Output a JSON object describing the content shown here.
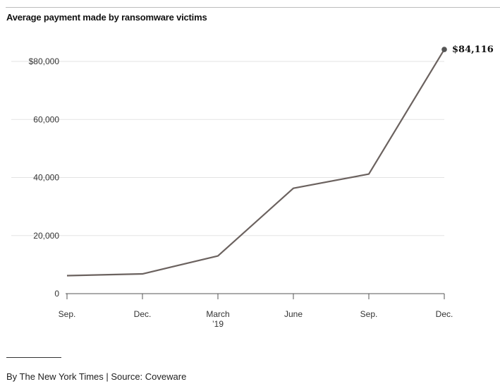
{
  "chart_data": {
    "type": "line",
    "title": "Average payment made by ransomware victims",
    "xlabel": "",
    "ylabel": "",
    "x_ticks": [
      {
        "label": [
          "Sep."
        ]
      },
      {
        "label": [
          "Dec."
        ]
      },
      {
        "label": [
          "March",
          "’19"
        ]
      },
      {
        "label": [
          "June"
        ]
      },
      {
        "label": [
          "Sep."
        ]
      },
      {
        "label": [
          "Dec."
        ]
      }
    ],
    "y_ticks": [
      {
        "value": 0,
        "label": "0"
      },
      {
        "value": 20000,
        "label": "20,000"
      },
      {
        "value": 40000,
        "label": "40,000"
      },
      {
        "value": 60000,
        "label": "60,000"
      },
      {
        "value": 80000,
        "label": "$80,000"
      }
    ],
    "ylim": [
      0,
      84116
    ],
    "series": [
      {
        "values": [
          6200,
          6800,
          13000,
          36300,
          41200,
          84116
        ],
        "line_color": "#6b625f"
      }
    ],
    "end_label": "$84,116",
    "grid": true
  },
  "footer": {
    "credit": "By The New York Times | Source: Coveware"
  }
}
